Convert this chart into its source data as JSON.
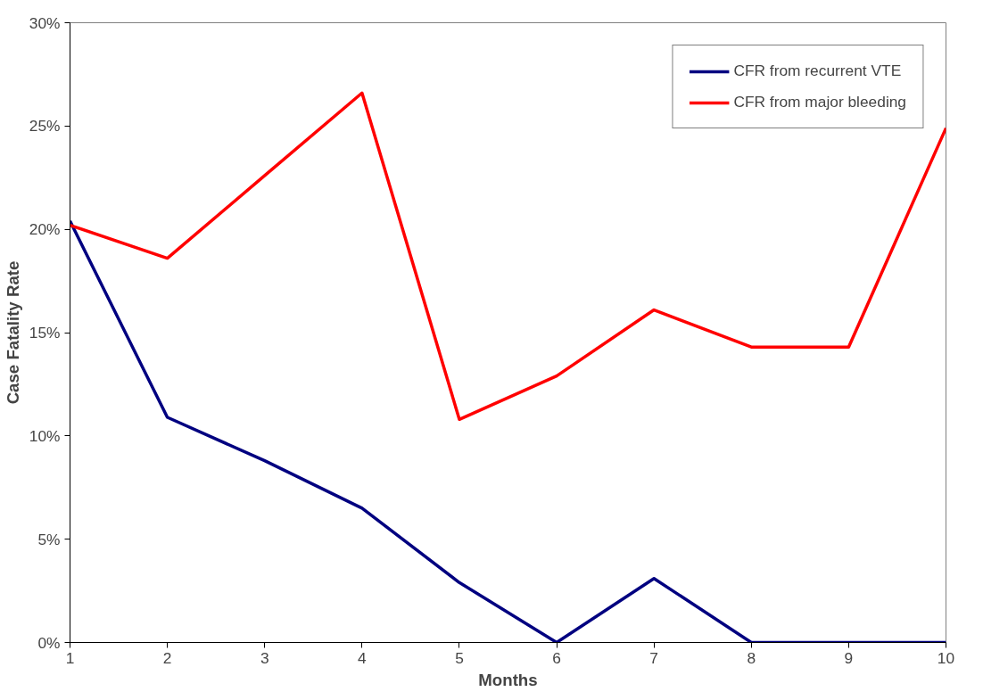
{
  "chart_data": {
    "type": "line",
    "xlabel": "Months",
    "ylabel": "Case Fatality Rate",
    "x": [
      1,
      2,
      3,
      4,
      5,
      6,
      7,
      8,
      9,
      10
    ],
    "series": [
      {
        "name": "CFR from recurrent VTE",
        "color": "#000080",
        "values": [
          20.4,
          10.9,
          8.8,
          6.5,
          2.9,
          0,
          3.1,
          0,
          0,
          0
        ]
      },
      {
        "name": "CFR from major bleeding",
        "color": "#ff0000",
        "values": [
          20.2,
          18.6,
          22.6,
          26.6,
          10.8,
          12.9,
          16.1,
          14.3,
          14.3,
          24.9
        ]
      }
    ],
    "xlim": [
      1,
      10
    ],
    "xticks": [
      1,
      2,
      3,
      4,
      5,
      6,
      7,
      8,
      9,
      10
    ],
    "ylim": [
      0,
      30
    ],
    "yticks": [
      {
        "value": 0,
        "label": "0%"
      },
      {
        "value": 5,
        "label": "5%"
      },
      {
        "value": 10,
        "label": "10%"
      },
      {
        "value": 15,
        "label": "15%"
      },
      {
        "value": 20,
        "label": "20%"
      },
      {
        "value": 25,
        "label": "25%"
      },
      {
        "value": 30,
        "label": "30%"
      }
    ],
    "grid": false,
    "legend": "top right",
    "marker": "none",
    "line_style": "solid"
  }
}
